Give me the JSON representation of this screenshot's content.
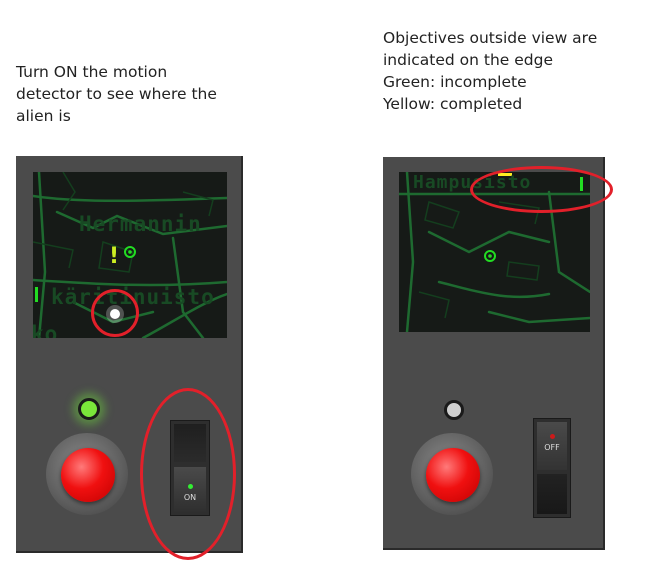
{
  "left_panel": {
    "caption_lines": [
      "Turn ON the motion",
      "detector to see where the",
      "alien is"
    ],
    "map_labels": [
      "Hermannin",
      "käritinuisto",
      "ko"
    ],
    "objective_marker": "!",
    "switch_label": "ON",
    "detector_on": true
  },
  "right_panel": {
    "caption_lines": [
      "Objectives outside view are",
      "indicated on the edge",
      "Green: incomplete",
      "Yellow: completed"
    ],
    "map_labels": [
      "Hampusisto"
    ],
    "switch_label": "OFF",
    "detector_on": false
  },
  "colors": {
    "panel": "#4b4b4b",
    "screen": "#161a17",
    "map_lines": "#1e6a30",
    "objective_incomplete": "#22dd22",
    "objective_completed": "#ffee22",
    "alien_blip": "#ffffff",
    "button": "#f01010",
    "annotation": "#e2202a"
  }
}
